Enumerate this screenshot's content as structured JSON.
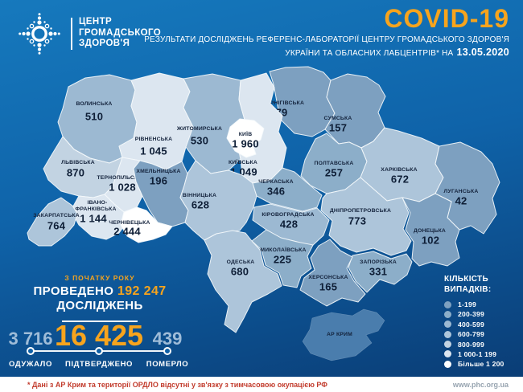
{
  "header": {
    "logo_lines": [
      "ЦЕНТР",
      "ГРОМАДСЬКОГО",
      "ЗДОРОВ'Я"
    ],
    "title": "COVID-19",
    "subtitle_line1": "РЕЗУЛЬТАТИ ДОСЛІДЖЕНЬ РЕФЕРЕНС-ЛАБОРАТОРІЇ ЦЕНТРУ ГРОМАДСЬКОГО ЗДОРОВ'Я",
    "subtitle_line2": "УКРАЇНИ ТА ОБЛАСНИХ ЛАБЦЕНТРІВ* НА",
    "date": "13.05.2020"
  },
  "colors": {
    "accent_orange": "#F7A41D",
    "label_dark": "#14233C",
    "value_dark": "#0E1E36",
    "no_data_fill": "#4A7DAD",
    "pale_stat": "#9FBCD8",
    "footer_red": "#C23B2C",
    "ranges": {
      "r1": "#7DA0C0",
      "r2": "#8CAEC9",
      "r3": "#9CB9D2",
      "r4": "#ADC5DA",
      "r5": "#C2D3E2",
      "r6": "#DCE6F0",
      "r7": "#FFFFFF"
    }
  },
  "map": {
    "regions": [
      {
        "id": "volyn",
        "name": "ВОЛИНСЬКА",
        "value": "510",
        "range": "r3"
      },
      {
        "id": "rivne",
        "name": "РІВНЕНСЬКА",
        "value": "1 045",
        "range": "r6"
      },
      {
        "id": "zhytomyr",
        "name": "ЖИТОМИРСЬКА",
        "value": "530",
        "range": "r3"
      },
      {
        "id": "chernihiv",
        "name": "ЧЕРНІГІВСЬКА",
        "value": "79",
        "range": "r1"
      },
      {
        "id": "sumy",
        "name": "СУМСЬКА",
        "value": "157",
        "range": "r1"
      },
      {
        "id": "lviv",
        "name": "ЛЬВІВСЬКА",
        "value": "870",
        "range": "r5"
      },
      {
        "id": "ternopil",
        "name": "ТЕРНОПІЛЬСЬКА",
        "value": "1 028",
        "range": "r6"
      },
      {
        "id": "khmelnytskyi",
        "name": "ХМЕЛЬНИЦЬКА",
        "value": "196",
        "range": "r1"
      },
      {
        "id": "kyiv_region",
        "name": "КИЇВСЬКА",
        "value": "1 049",
        "range": "r6"
      },
      {
        "id": "kyiv_city",
        "name": "КИЇВ",
        "value": "1 960",
        "range": "r7"
      },
      {
        "id": "poltava",
        "name": "ПОЛТАВСЬКА",
        "value": "257",
        "range": "r2"
      },
      {
        "id": "kharkiv",
        "name": "ХАРКІВСЬКА",
        "value": "672",
        "range": "r4"
      },
      {
        "id": "luhansk",
        "name": "ЛУГАНСЬКА",
        "value": "42",
        "range": "r1"
      },
      {
        "id": "ivano_frankivsk",
        "name": "ІВАНО-ФРАНКІВСЬКА",
        "value": "1 144",
        "range": "r6"
      },
      {
        "id": "zakarpattia",
        "name": "ЗАКАРПАТСЬКА",
        "value": "764",
        "range": "r4"
      },
      {
        "id": "chernivtsi",
        "name": "ЧЕРНІВЕЦЬКА",
        "value": "2 444",
        "range": "r7"
      },
      {
        "id": "vinnytsia",
        "name": "ВІННИЦЬКА",
        "value": "628",
        "range": "r4"
      },
      {
        "id": "cherkasy",
        "name": "ЧЕРКАСЬКА",
        "value": "346",
        "range": "r2"
      },
      {
        "id": "kirovohrad",
        "name": "КІРОВОГРАДСЬКА",
        "value": "428",
        "range": "r3"
      },
      {
        "id": "dnipro",
        "name": "ДНІПРОПЕТРОВСЬКА",
        "value": "773",
        "range": "r4"
      },
      {
        "id": "donetsk",
        "name": "ДОНЕЦЬКА",
        "value": "102",
        "range": "r1"
      },
      {
        "id": "zaporizhzhia",
        "name": "ЗАПОРІЗЬКА",
        "value": "331",
        "range": "r2"
      },
      {
        "id": "mykolaiv",
        "name": "МИКОЛАЇВСЬКА",
        "value": "225",
        "range": "r2"
      },
      {
        "id": "kherson",
        "name": "ХЕРСОНСЬКА",
        "value": "165",
        "range": "r1"
      },
      {
        "id": "odesa",
        "name": "ОДЕСЬКА",
        "value": "680",
        "range": "r4"
      },
      {
        "id": "crimea",
        "name": "АР КРИМ",
        "value": null,
        "range": "none"
      }
    ]
  },
  "tested": {
    "label_top": "З ПОЧАТКУ РОКУ",
    "prefix": "ПРОВЕДЕНО",
    "count": "192 247",
    "suffix": "ДОСЛІДЖЕНЬ"
  },
  "stats": [
    {
      "value": "3 716",
      "label": "ОДУЖАЛО",
      "emphasis": false
    },
    {
      "value": "16 425",
      "label": "ПІДТВЕРДЖЕНО",
      "emphasis": true
    },
    {
      "value": "439",
      "label": "ПОМЕРЛО",
      "emphasis": false
    }
  ],
  "legend": {
    "title_line1": "КІЛЬКІСТЬ",
    "title_line2": "ВИПАДКІВ:",
    "items": [
      {
        "label": "1-199",
        "range": "r1"
      },
      {
        "label": "200-399",
        "range": "r2"
      },
      {
        "label": "400-599",
        "range": "r3"
      },
      {
        "label": "600-799",
        "range": "r4"
      },
      {
        "label": "800-999",
        "range": "r5"
      },
      {
        "label": "1 000-1 199",
        "range": "r6"
      },
      {
        "label": "Більше 1 200",
        "range": "r7"
      }
    ]
  },
  "footer": {
    "note": "* Дані з АР Крим та території ОРДЛО відсутні у зв'язку з тимчасовою окупацією РФ",
    "url": "www.phc.org.ua"
  }
}
